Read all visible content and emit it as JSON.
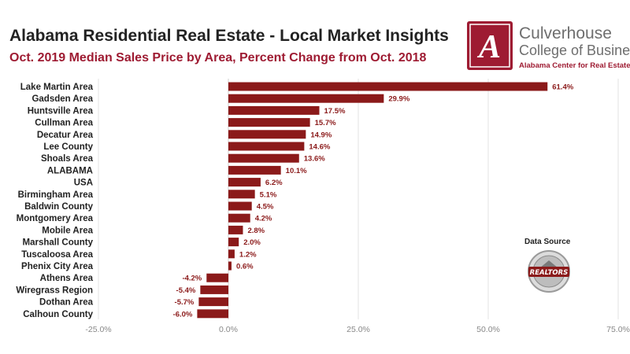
{
  "header": {
    "title": "Alabama Residential Real Estate - Local Market Insights",
    "subtitle": "Oct. 2019 Median Sales Price by Area, Percent Change from Oct. 2018"
  },
  "logo": {
    "mark": "A",
    "line1": "Culverhouse",
    "line2": "College of Business",
    "line3": "Alabama Center for Real Estate"
  },
  "source": {
    "label": "Data Source",
    "seal_text": "REALTORS"
  },
  "colors": {
    "bar": "#8b1a1a",
    "accent": "#9e1b32",
    "grid": "#e3e3e3",
    "value_label": "#8b1a1a"
  },
  "chart_data": {
    "type": "bar",
    "orientation": "horizontal",
    "categories": [
      "Lake Martin Area",
      "Gadsden Area",
      "Huntsville Area",
      "Cullman Area",
      "Decatur Area",
      "Lee County",
      "Shoals Area",
      "ALABAMA",
      "USA",
      "Birmingham Area",
      "Baldwin County",
      "Montgomery Area",
      "Mobile Area",
      "Marshall County",
      "Tuscaloosa Area",
      "Phenix City Area",
      "Athens Area",
      "Wiregrass Region",
      "Dothan Area",
      "Calhoun County"
    ],
    "values": [
      61.4,
      29.9,
      17.5,
      15.7,
      14.9,
      14.6,
      13.6,
      10.1,
      6.2,
      5.1,
      4.5,
      4.2,
      2.8,
      2.0,
      1.2,
      0.6,
      -4.2,
      -5.4,
      -5.7,
      -6.0
    ],
    "value_labels": [
      "61.4%",
      "29.9%",
      "17.5%",
      "15.7%",
      "14.9%",
      "14.6%",
      "13.6%",
      "10.1%",
      "6.2%",
      "5.1%",
      "4.5%",
      "4.2%",
      "2.8%",
      "2.0%",
      "1.2%",
      "0.6%",
      "-4.2%",
      "-5.4%",
      "-5.7%",
      "-6.0%"
    ],
    "xlim": [
      -25,
      75
    ],
    "xticks": [
      -25,
      0,
      25,
      50,
      75
    ],
    "xtick_labels": [
      "-25.0%",
      "0.0%",
      "25.0%",
      "50.0%",
      "75.0%"
    ],
    "title": "Alabama Residential Real Estate - Local Market Insights",
    "subtitle": "Oct. 2019 Median Sales Price by Area, Percent Change from Oct. 2018",
    "xlabel": "",
    "ylabel": "",
    "grid": "vertical"
  }
}
